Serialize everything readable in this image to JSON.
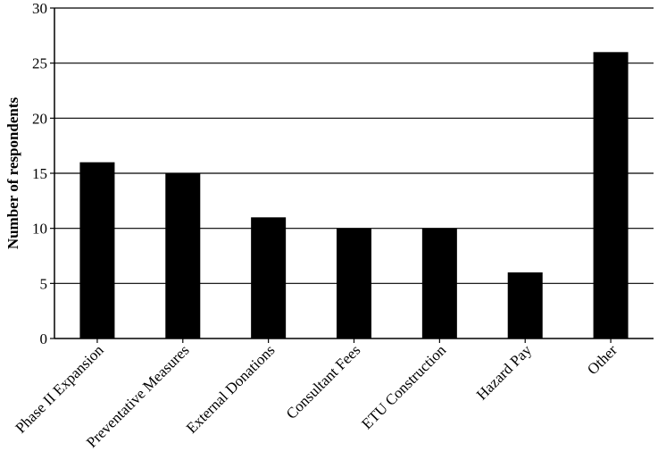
{
  "chart_data": {
    "type": "bar",
    "title": "",
    "xlabel": "",
    "ylabel": "Number of respondents",
    "categories": [
      "Phase II Expansion",
      "Preventative Measures",
      "External Donations",
      "Consultant Fees",
      "ETU Construction",
      "Hazard Pay",
      "Other"
    ],
    "values": [
      16,
      15,
      11,
      10,
      10,
      6,
      26
    ],
    "ylim": [
      0,
      30
    ],
    "yticks": [
      0,
      5,
      10,
      15,
      20,
      25,
      30
    ],
    "grid": true,
    "legend": "none",
    "bar_color": "#000000"
  }
}
